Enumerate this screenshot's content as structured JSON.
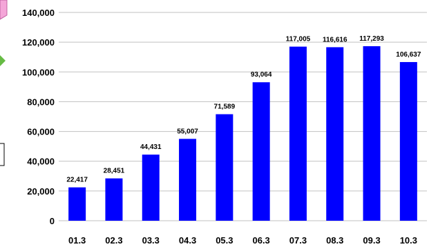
{
  "chart_data": {
    "type": "bar",
    "categories": [
      "01.3",
      "02.3",
      "03.3",
      "04.3",
      "05.3",
      "06.3",
      "07.3",
      "08.3",
      "09.3",
      "10.3"
    ],
    "values": [
      22417,
      28451,
      44431,
      55007,
      71589,
      93064,
      117005,
      116616,
      117293,
      106637
    ],
    "data_labels": [
      "22,417",
      "28,451",
      "44,431",
      "55,007",
      "71,589",
      "93,064",
      "117,005",
      "116,616",
      "117,293",
      "106,637"
    ],
    "yticks": [
      0,
      20000,
      40000,
      60000,
      80000,
      100000,
      120000,
      140000
    ],
    "ytick_labels": [
      "0",
      "20,000",
      "40,000",
      "60,000",
      "80,000",
      "100,000",
      "120,000",
      "140,000"
    ],
    "ylim": [
      0,
      140000
    ],
    "grid": true,
    "bar_color": "#0000FF",
    "grid_color": "#C0C0C0"
  }
}
